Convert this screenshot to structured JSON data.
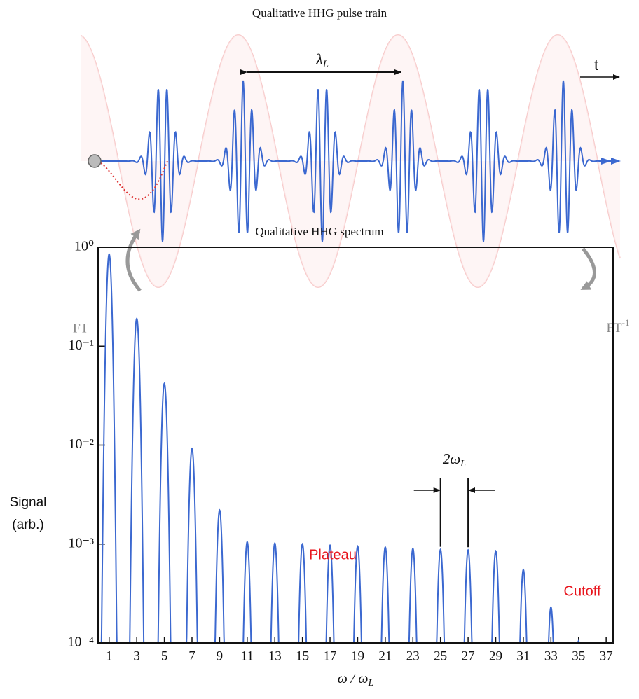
{
  "diagram": {
    "title": "Qualitative HHG pulse train",
    "period_symbol": "λ",
    "period_subscript": "L",
    "time_label": "t",
    "ft_label": "FT",
    "ift_label": "FT",
    "ift_superscript": "-1"
  },
  "chart_data": {
    "type": "spectrum",
    "title": "Qualitative HHG spectrum",
    "x_label": "ω / ω",
    "x_label_subscript": "L",
    "y_label": [
      "Signal",
      "(arb.)"
    ],
    "x": [
      1,
      3,
      5,
      7,
      9,
      11,
      13,
      15,
      17,
      19,
      21,
      23,
      25,
      27,
      29,
      31,
      33,
      35
    ],
    "values": [
      0.85,
      0.19,
      0.042,
      0.0092,
      0.0022,
      0.00105,
      0.00102,
      0.001,
      0.00097,
      0.00095,
      0.00093,
      0.0009,
      0.00088,
      0.00087,
      0.00085,
      0.00055,
      0.00023,
      0.000105
    ],
    "color": "#3b68d0",
    "log_y": true,
    "xlim": [
      0.2,
      37.5
    ],
    "xticks": [
      1,
      3,
      5,
      7,
      9,
      11,
      13,
      15,
      17,
      19,
      21,
      23,
      25,
      27,
      29,
      31,
      33,
      35,
      37
    ],
    "ylim": [
      0.0001,
      1
    ],
    "yticks": [
      {
        "value": 0.0001,
        "label": "10⁻⁴"
      },
      {
        "value": 0.001,
        "label": "10⁻³"
      },
      {
        "value": 0.01,
        "label": "10⁻²"
      },
      {
        "value": 0.1,
        "label": "10⁻¹"
      },
      {
        "value": 1,
        "label": "10⁰"
      }
    ],
    "annotations": {
      "plateau": "Plateau",
      "cutoff": "Cutoff",
      "spacing": "2ω",
      "spacing_subscript": "L"
    }
  }
}
